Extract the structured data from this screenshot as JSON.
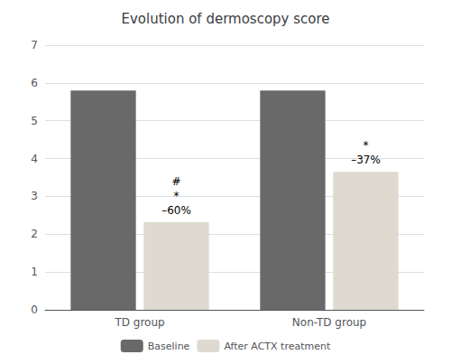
{
  "chart_data": {
    "type": "bar",
    "title": "Evolution of dermoscopy score",
    "categories": [
      "TD group",
      "Non-TD group"
    ],
    "series": [
      {
        "name": "Baseline",
        "color": "#696969",
        "values": [
          5.8,
          5.8
        ]
      },
      {
        "name": "After ACTX treatment",
        "color": "#dedad0",
        "values": [
          2.32,
          3.65
        ]
      }
    ],
    "annotations": [
      {
        "category": "TD group",
        "series": "After ACTX treatment",
        "texts": [
          "#",
          "*",
          "–60%"
        ]
      },
      {
        "category": "Non-TD group",
        "series": "After ACTX treatment",
        "texts": [
          "*",
          "–37%"
        ]
      }
    ],
    "ylim": [
      0,
      7
    ],
    "yticks": [
      0,
      1,
      2,
      3,
      4,
      5,
      6,
      7
    ],
    "grid": true,
    "legend": "bottom"
  }
}
